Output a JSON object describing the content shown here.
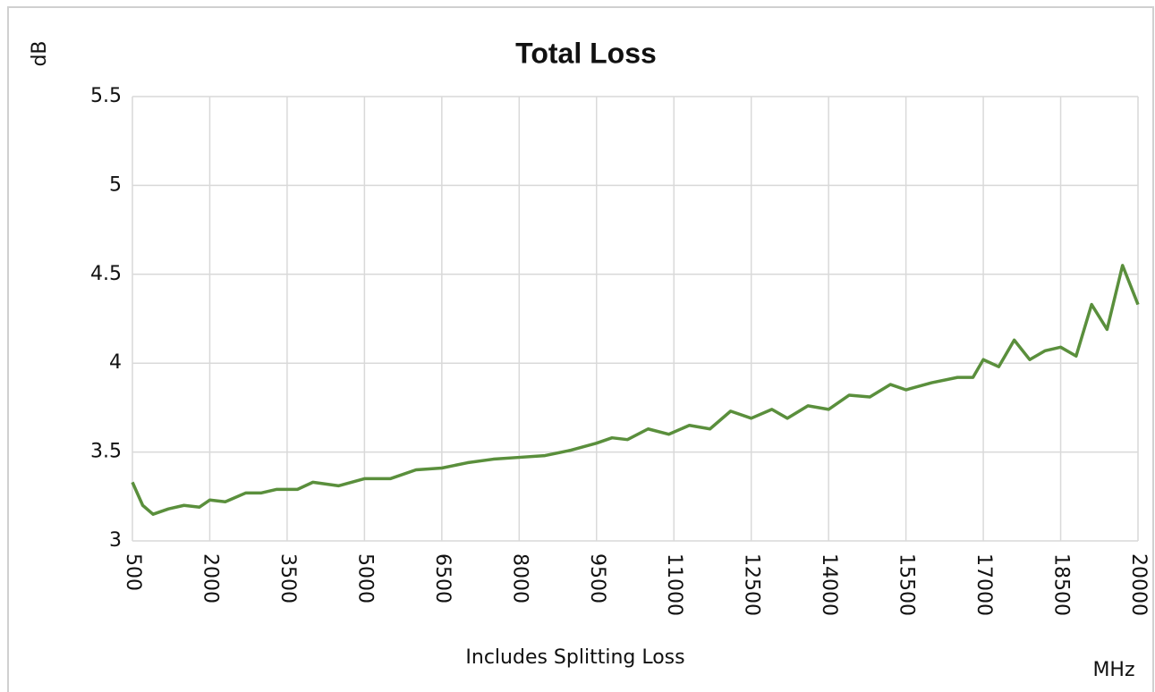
{
  "chart_data": {
    "type": "line",
    "title": "Total Loss",
    "y_label": "dB",
    "x_label": "MHz",
    "annotation": "Includes Splitting Loss",
    "x": [
      500,
      700,
      900,
      1200,
      1500,
      1800,
      2000,
      2300,
      2700,
      3000,
      3300,
      3700,
      4000,
      4500,
      5000,
      5500,
      6000,
      6500,
      7000,
      7500,
      8000,
      8500,
      9000,
      9500,
      9800,
      10100,
      10500,
      10900,
      11300,
      11700,
      12100,
      12500,
      12900,
      13200,
      13600,
      14000,
      14400,
      14800,
      15200,
      15500,
      16000,
      16500,
      16800,
      17000,
      17300,
      17600,
      17900,
      18200,
      18500,
      18800,
      19100,
      19400,
      19700,
      20000
    ],
    "series": [
      {
        "name": "Total Loss",
        "color": "#5a8f3c",
        "values": [
          3.33,
          3.2,
          3.15,
          3.18,
          3.2,
          3.19,
          3.23,
          3.22,
          3.27,
          3.27,
          3.29,
          3.29,
          3.33,
          3.31,
          3.35,
          3.35,
          3.4,
          3.41,
          3.44,
          3.46,
          3.47,
          3.48,
          3.51,
          3.55,
          3.58,
          3.57,
          3.63,
          3.6,
          3.65,
          3.63,
          3.73,
          3.69,
          3.74,
          3.69,
          3.76,
          3.74,
          3.82,
          3.81,
          3.88,
          3.85,
          3.89,
          3.92,
          3.92,
          4.02,
          3.98,
          4.13,
          4.02,
          4.07,
          4.09,
          4.04,
          4.33,
          4.19,
          4.55,
          4.33
        ]
      }
    ],
    "xlim": [
      500,
      20000
    ],
    "xticks": [
      500,
      2000,
      3500,
      5000,
      6500,
      8000,
      9500,
      11000,
      12500,
      14000,
      15500,
      17000,
      18500,
      20000
    ],
    "ylim": [
      3,
      5.5
    ],
    "yticks": [
      3,
      3.5,
      4,
      4.5,
      5,
      5.5
    ],
    "grid": true
  }
}
